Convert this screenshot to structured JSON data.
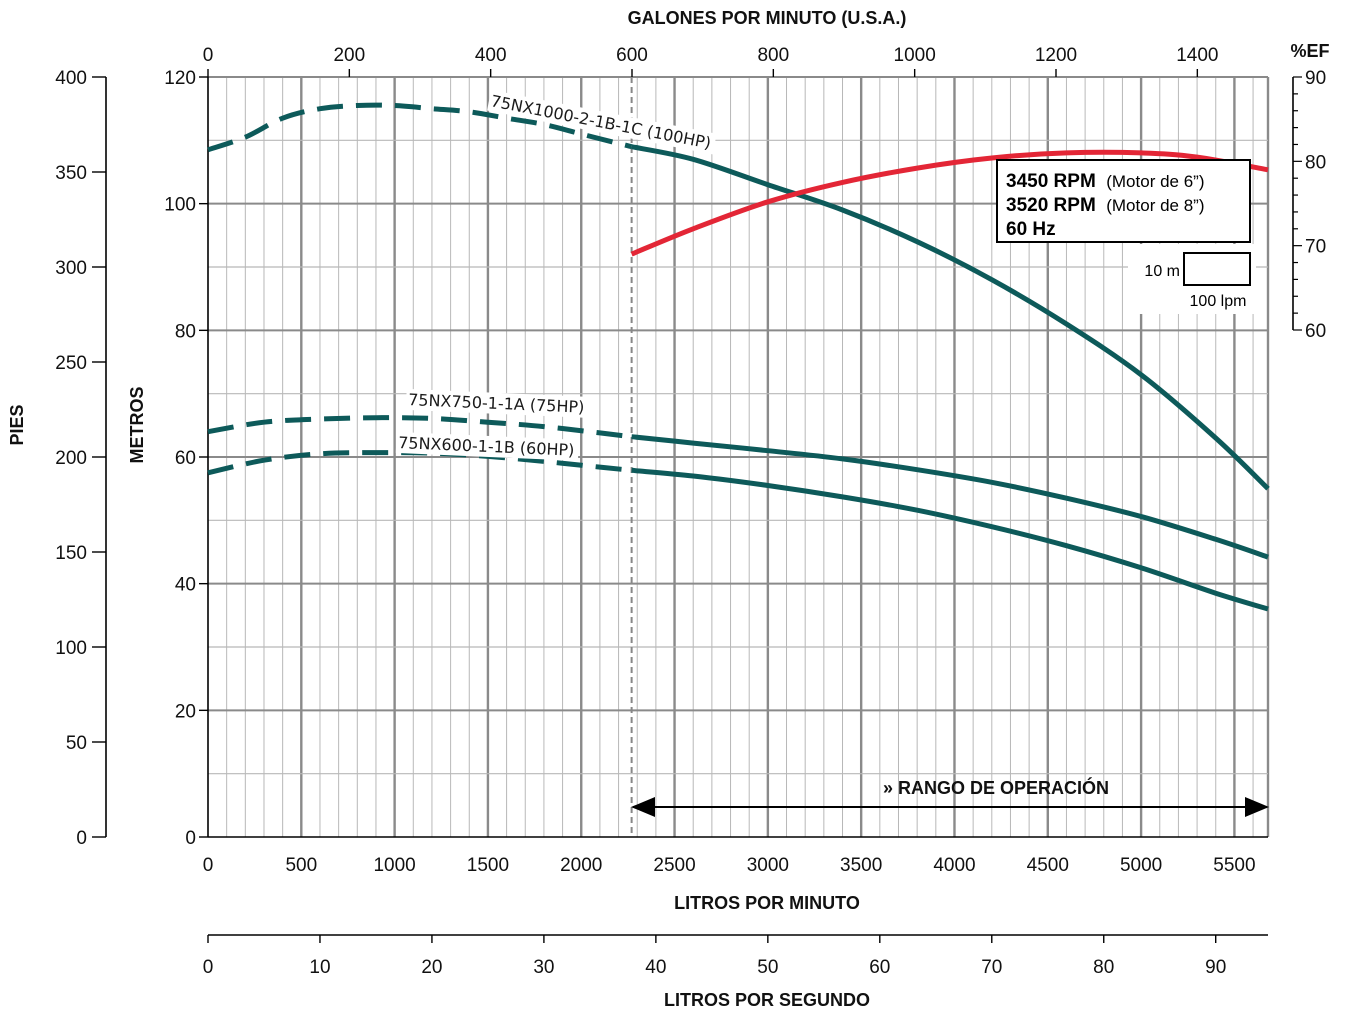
{
  "chart_data": {
    "type": "line",
    "title": "",
    "x_axis_bottom": {
      "label": "LITROS POR MINUTO",
      "range": [
        0,
        5680
      ],
      "ticks": [
        0,
        500,
        1000,
        1500,
        2000,
        2500,
        3000,
        3500,
        4000,
        4500,
        5000,
        5500
      ]
    },
    "x_axis_top": {
      "label": "GALONES POR MINUTO (U.S.A.)",
      "range": [
        0,
        1500
      ],
      "ticks": [
        0,
        200,
        400,
        600,
        800,
        1000,
        1200,
        1400
      ]
    },
    "x_axis_lps": {
      "label": "LITROS POR SEGUNDO",
      "range": [
        0,
        94.67
      ],
      "ticks": [
        0,
        10,
        20,
        30,
        40,
        50,
        60,
        70,
        80,
        90
      ]
    },
    "y_axis_meters": {
      "label": "METROS",
      "range": [
        0,
        120
      ],
      "ticks": [
        0,
        20,
        40,
        60,
        80,
        100,
        120
      ]
    },
    "y_axis_feet": {
      "label": "PIES",
      "range": [
        0,
        400
      ],
      "ticks": [
        0,
        50,
        100,
        150,
        200,
        250,
        300,
        350,
        400
      ]
    },
    "y_axis_efficiency": {
      "label": "%EF",
      "range": [
        60,
        90
      ],
      "ticks": [
        60,
        70,
        80,
        90
      ]
    },
    "grid": true,
    "min_flow_lpm": 2270,
    "series": [
      {
        "name": "75NX1000-2-1B-1C (100HP)",
        "color": "#0d5a5a",
        "dashed_until_lpm": 2270,
        "x": [
          0,
          200,
          400,
          600,
          800,
          1000,
          1200,
          1400,
          1600,
          1800,
          2000,
          2200,
          2270,
          2600,
          3000,
          3400,
          3800,
          4200,
          4600,
          5000,
          5400,
          5680
        ],
        "y": [
          108.5,
          110.5,
          113.5,
          115,
          115.5,
          115.5,
          115,
          114.5,
          113.5,
          112.5,
          111,
          109.5,
          109,
          107,
          103,
          99,
          94,
          88,
          81,
          73,
          63,
          55
        ]
      },
      {
        "name": "75NX750-1-1A (75HP)",
        "color": "#0d5a5a",
        "dashed_until_lpm": 2270,
        "x": [
          0,
          300,
          600,
          900,
          1200,
          1500,
          1800,
          2100,
          2270,
          2600,
          3000,
          3400,
          3800,
          4200,
          4600,
          5000,
          5400,
          5680
        ],
        "y": [
          64,
          65.5,
          66,
          66.2,
          66.1,
          65.5,
          64.8,
          63.8,
          63.2,
          62.2,
          61,
          59.7,
          58,
          56,
          53.5,
          50.6,
          47,
          44.2
        ]
      },
      {
        "name": "75NX600-1-1B (60HP)",
        "color": "#0d5a5a",
        "dashed_until_lpm": 2270,
        "x": [
          0,
          300,
          600,
          900,
          1200,
          1500,
          1800,
          2100,
          2270,
          2600,
          3000,
          3400,
          3800,
          4200,
          4600,
          5000,
          5400,
          5680
        ],
        "y": [
          57.5,
          59.5,
          60.5,
          60.7,
          60.6,
          60.1,
          59.3,
          58.4,
          57.9,
          57,
          55.5,
          53.7,
          51.6,
          49,
          46,
          42.5,
          38.5,
          36
        ]
      },
      {
        "name": "%EF",
        "color": "#e32636",
        "axis": "efficiency",
        "x": [
          2270,
          2600,
          3000,
          3400,
          3800,
          4200,
          4600,
          5000,
          5300,
          5680
        ],
        "y": [
          69,
          72,
          75.2,
          77.5,
          79.2,
          80.4,
          81,
          81,
          80.5,
          79
        ]
      }
    ],
    "annotations": {
      "operating_range": "» RANGO DE OPERACIÓN",
      "rpm_line1_bold": "3450 RPM",
      "rpm_line1_note": "(Motor de 6”)",
      "rpm_line2_bold": "3520 RPM",
      "rpm_line2_note": "(Motor de 8”)",
      "freq": "60 Hz",
      "scale_vertical": "10 m",
      "scale_horizontal": "100 lpm"
    }
  }
}
